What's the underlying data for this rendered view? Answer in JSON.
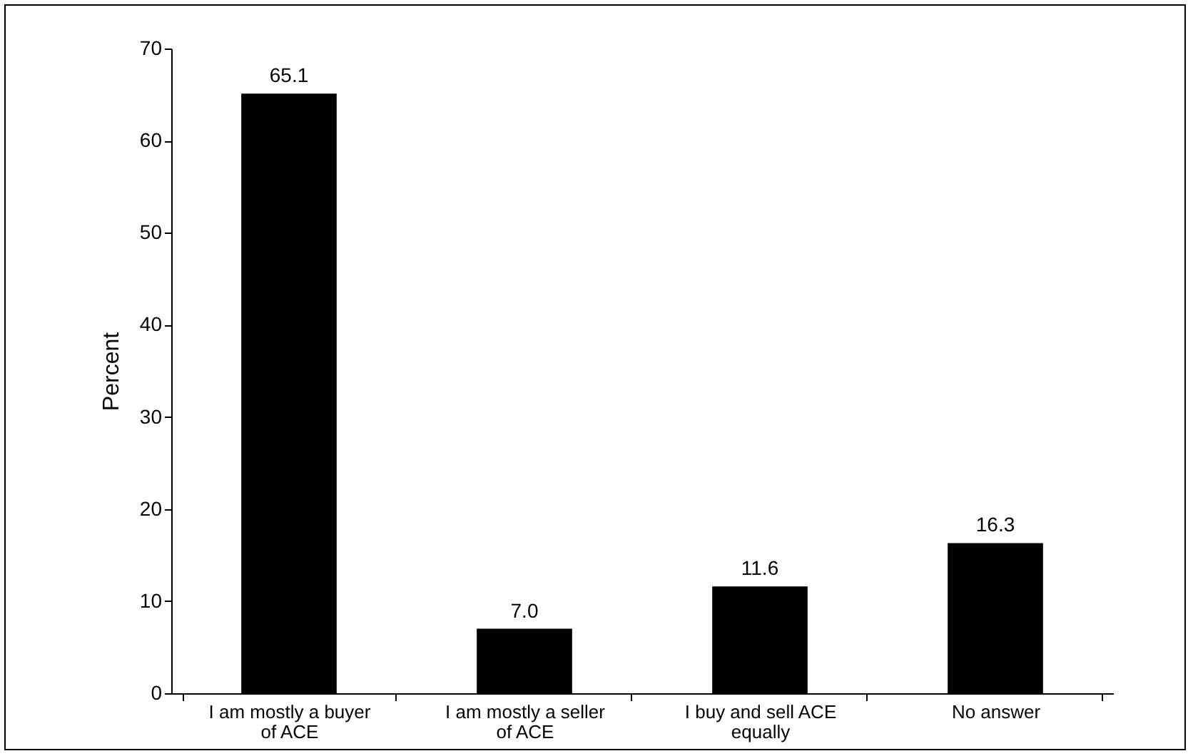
{
  "chart_data": {
    "type": "bar",
    "ylabel": "Percent",
    "categories": [
      "I am mostly a buyer of ACE",
      "I am mostly a seller of ACE",
      "I buy and sell ACE equally",
      "No answer"
    ],
    "values": [
      65.1,
      7.0,
      11.6,
      16.3
    ],
    "value_labels": [
      "65.1",
      "7.0",
      "11.6",
      "16.3"
    ],
    "color": "#000000",
    "ylim": [
      0,
      70
    ],
    "yticks": [
      0,
      10,
      20,
      30,
      40,
      50,
      60,
      70
    ],
    "grid": false
  }
}
